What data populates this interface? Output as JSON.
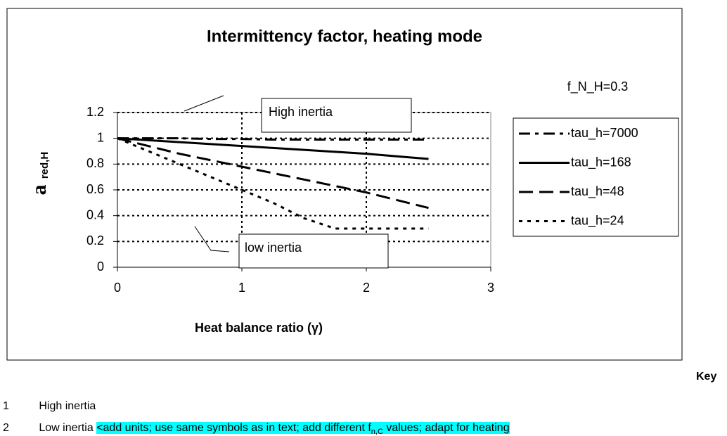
{
  "chart_data": {
    "type": "line",
    "title": "Intermittency factor, heating mode",
    "x_label": "Heat balance ratio (γ)",
    "y_label": "a",
    "y_label_sub": "red,H",
    "x": [
      0,
      0.25,
      0.5,
      0.75,
      1,
      1.25,
      1.5,
      1.75,
      2,
      2.25,
      2.5
    ],
    "series": [
      {
        "name": "tau_h=7000",
        "color": "#000000",
        "dash": "16,7,5,7",
        "values": [
          1,
          1,
          1,
          0.995,
          0.995,
          0.99,
          0.99,
          0.99,
          0.99,
          0.99,
          0.99
        ]
      },
      {
        "name": "tau_h=168",
        "color": "#000000",
        "dash": "none",
        "values": [
          1,
          0.985,
          0.97,
          0.955,
          0.94,
          0.925,
          0.91,
          0.895,
          0.88,
          0.86,
          0.84
        ]
      },
      {
        "name": "tau_h=48",
        "color": "#000000",
        "dash": "20,9",
        "values": [
          1,
          0.94,
          0.88,
          0.83,
          0.78,
          0.73,
          0.68,
          0.63,
          0.58,
          0.52,
          0.46
        ]
      },
      {
        "name": "tau_h=24",
        "color": "#000000",
        "dash": "5,7",
        "values": [
          1,
          0.9,
          0.8,
          0.7,
          0.6,
          0.5,
          0.38,
          0.3,
          0.3,
          0.3,
          0.3
        ]
      }
    ],
    "xlim": [
      0,
      3
    ],
    "xticks": [
      0,
      1,
      2,
      3
    ],
    "ylim": [
      0,
      1.2
    ],
    "yticks": [
      0,
      0.2,
      0.4,
      0.6,
      0.8,
      1,
      1.2
    ],
    "grid": true,
    "legend": "right",
    "annotations": [
      "High inertia",
      "low inertia",
      "f_N_H=0.3"
    ]
  },
  "key": {
    "title": "Key",
    "items": [
      {
        "number": "1",
        "text": "High inertia"
      },
      {
        "number": "2",
        "text": "Low inertia",
        "note": "<add units; use same symbols as in text; add different f",
        "note_sub": "n,C",
        "note_end": " values; adapt for heating"
      }
    ]
  }
}
